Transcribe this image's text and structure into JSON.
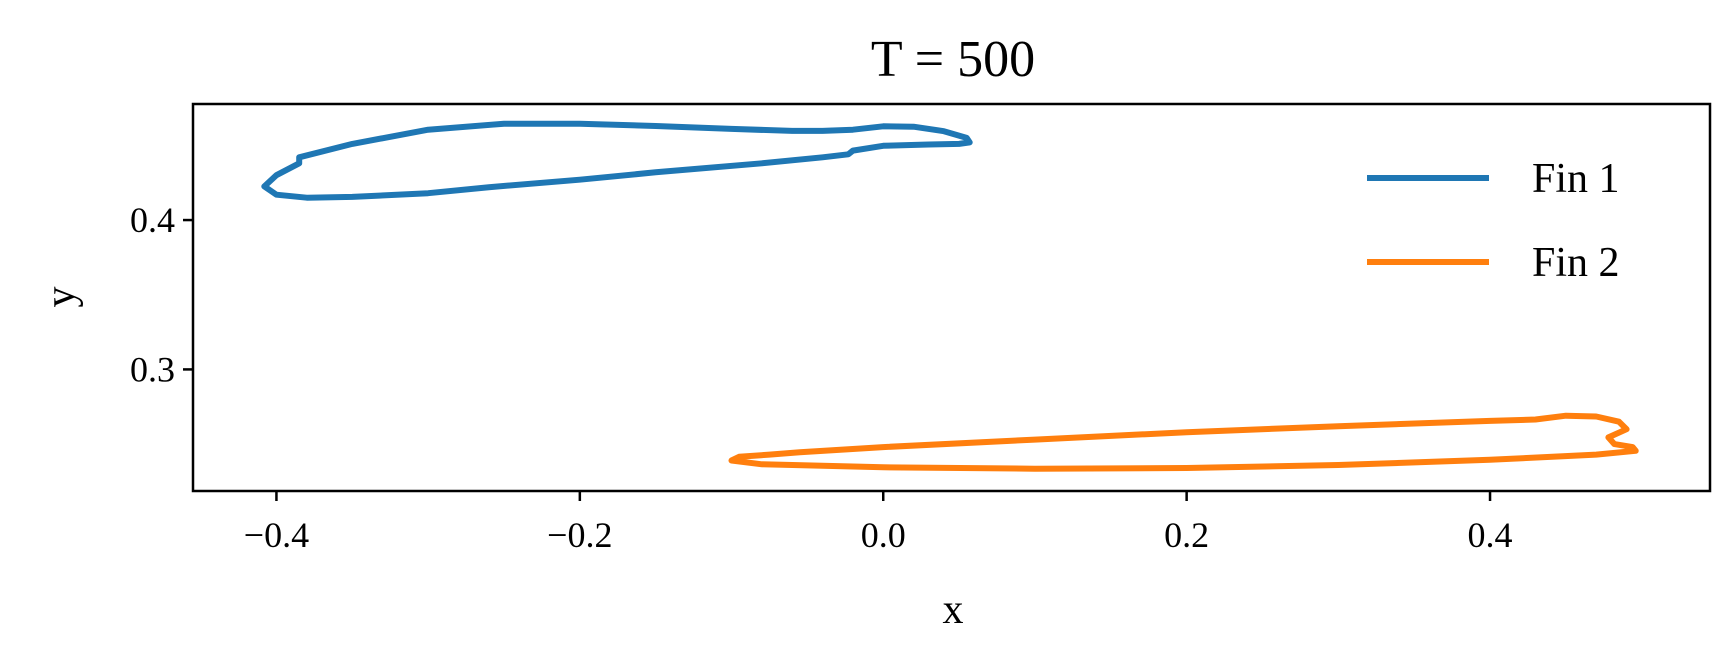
{
  "chart_data": {
    "type": "line",
    "title": "T = 500",
    "xlabel": "x",
    "ylabel": "y",
    "xlim": [
      -0.455,
      0.545
    ],
    "ylim": [
      0.2186,
      0.4777
    ],
    "xticks": [
      -0.4,
      -0.2,
      0.0,
      0.2,
      0.4
    ],
    "xtick_labels": [
      "−0.4",
      "−0.2",
      "0.0",
      "0.2",
      "0.4"
    ],
    "yticks": [
      0.3,
      0.4
    ],
    "ytick_labels": [
      "0.3",
      "0.4"
    ],
    "grid": false,
    "legend_position": "top-right",
    "series": [
      {
        "name": "Fin 1",
        "color": "#1f77b4",
        "points": [
          [
            -0.385,
            0.442
          ],
          [
            -0.35,
            0.451
          ],
          [
            -0.3,
            0.4605
          ],
          [
            -0.25,
            0.4645
          ],
          [
            -0.2,
            0.4645
          ],
          [
            -0.15,
            0.463
          ],
          [
            -0.1,
            0.461
          ],
          [
            -0.06,
            0.4597
          ],
          [
            -0.04,
            0.4597
          ],
          [
            -0.02,
            0.4605
          ],
          [
            0.0,
            0.4628
          ],
          [
            0.02,
            0.4625
          ],
          [
            0.04,
            0.4595
          ],
          [
            0.055,
            0.455
          ],
          [
            0.057,
            0.452
          ],
          [
            0.05,
            0.451
          ],
          [
            0.03,
            0.4506
          ],
          [
            0.0,
            0.4497
          ],
          [
            -0.02,
            0.4465
          ],
          [
            -0.023,
            0.444
          ],
          [
            -0.04,
            0.442
          ],
          [
            -0.08,
            0.438
          ],
          [
            -0.15,
            0.432
          ],
          [
            -0.2,
            0.427
          ],
          [
            -0.26,
            0.422
          ],
          [
            -0.3,
            0.418
          ],
          [
            -0.35,
            0.4155
          ],
          [
            -0.38,
            0.415
          ],
          [
            -0.4,
            0.417
          ],
          [
            -0.408,
            0.4225
          ],
          [
            -0.4,
            0.43
          ],
          [
            -0.385,
            0.438
          ],
          [
            -0.385,
            0.442
          ]
        ]
      },
      {
        "name": "Fin 2",
        "color": "#ff7f0e",
        "points": [
          [
            -0.055,
            0.2445
          ],
          [
            0.0,
            0.248
          ],
          [
            0.1,
            0.253
          ],
          [
            0.2,
            0.258
          ],
          [
            0.3,
            0.262
          ],
          [
            0.4,
            0.2655
          ],
          [
            0.43,
            0.2665
          ],
          [
            0.45,
            0.269
          ],
          [
            0.47,
            0.2685
          ],
          [
            0.485,
            0.265
          ],
          [
            0.49,
            0.26
          ],
          [
            0.478,
            0.2545
          ],
          [
            0.482,
            0.25
          ],
          [
            0.494,
            0.248
          ],
          [
            0.496,
            0.2455
          ],
          [
            0.47,
            0.243
          ],
          [
            0.4,
            0.2395
          ],
          [
            0.3,
            0.236
          ],
          [
            0.2,
            0.234
          ],
          [
            0.1,
            0.2335
          ],
          [
            0.0,
            0.2345
          ],
          [
            -0.08,
            0.2365
          ],
          [
            -0.1,
            0.239
          ],
          [
            -0.095,
            0.2415
          ],
          [
            -0.075,
            0.243
          ],
          [
            -0.055,
            0.2445
          ]
        ]
      }
    ]
  }
}
